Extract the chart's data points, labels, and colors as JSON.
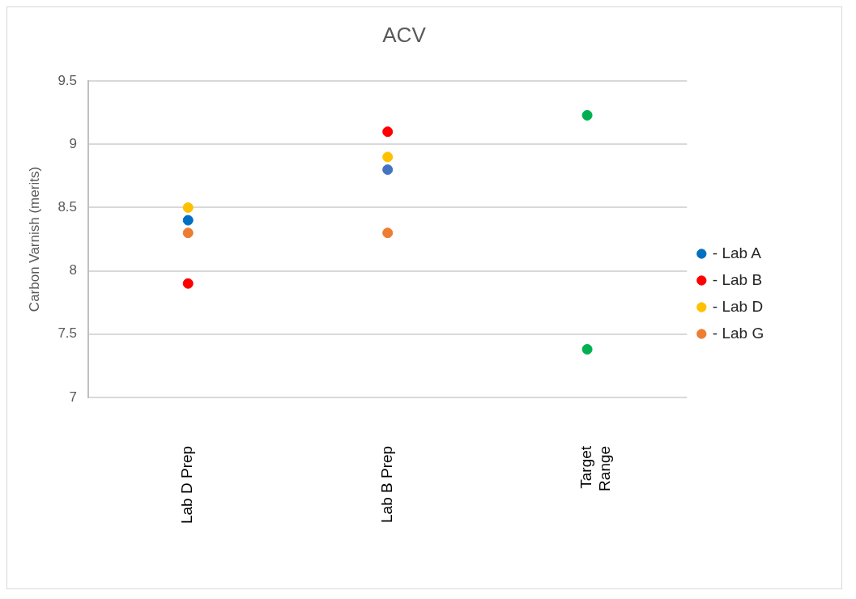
{
  "chart_data": {
    "type": "scatter",
    "title": "ACV",
    "ylabel": "Carbon Varnish (merits)",
    "categories": [
      "Lab D Prep",
      "Lab B Prep",
      "Target Range"
    ],
    "series": [
      {
        "name": "- Lab A",
        "color": "#0070c0",
        "colors": [
          "#0070c0",
          "#4472c4",
          null
        ],
        "values": [
          8.4,
          8.8,
          null
        ]
      },
      {
        "name": "- Lab B",
        "color": "#ff0000",
        "values": [
          7.9,
          9.1,
          null
        ]
      },
      {
        "name": "- Lab D",
        "color": "#ffc000",
        "values": [
          8.5,
          8.9,
          null
        ]
      },
      {
        "name": "- Lab G",
        "color": "#ed7d31",
        "values": [
          8.3,
          8.3,
          null
        ]
      },
      {
        "color": "#00b050",
        "x": [
          "Target Range",
          "Target Range"
        ],
        "values": [
          9.23,
          7.38
        ]
      }
    ],
    "ylim": [
      7,
      9.5
    ],
    "yticks": [
      7,
      7.5,
      8,
      8.5,
      9,
      9.5
    ],
    "grid": "y",
    "legend": "right",
    "marker": "circle"
  }
}
